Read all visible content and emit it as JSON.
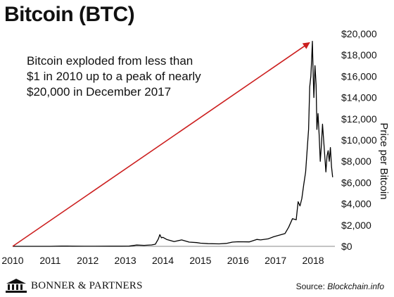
{
  "page": {
    "title": "Bitcoin (BTC)"
  },
  "footer": {
    "brand": "BONNER & PARTNERS",
    "source_prefix": "Source: ",
    "source_name": "Blockchain.info"
  },
  "chart_data": {
    "type": "line",
    "title": "Bitcoin (BTC)",
    "ylabel": "Price per Bitcoin",
    "xlabel": "",
    "x_ticks": [
      "2010",
      "2011",
      "2012",
      "2013",
      "2014",
      "2015",
      "2016",
      "2017",
      "2018"
    ],
    "y_ticks": [
      "$0",
      "$2,000",
      "$4,000",
      "$6,000",
      "$8,000",
      "$10,000",
      "$12,000",
      "$14,000",
      "$16,000",
      "$18,000",
      "$20,000"
    ],
    "xlim": [
      2010.0,
      2018.58
    ],
    "ylim": [
      0,
      20000
    ],
    "grid": false,
    "annotation": {
      "lines": [
        "Bitcoin exploded from less than",
        "$1 in 2010 up to a peak of nearly",
        "$20,000 in December 2017"
      ],
      "arrow_from": {
        "x": 2010.0,
        "y": 0
      },
      "arrow_to": {
        "x": 2017.96,
        "y": 19300
      },
      "arrow_color": "#cc1f1f"
    },
    "series": [
      {
        "color": "#000000",
        "x": [
          2010.0,
          2010.5,
          2011.0,
          2011.3,
          2011.45,
          2011.6,
          2011.9,
          2012.2,
          2012.6,
          2012.9,
          2013.1,
          2013.3,
          2013.5,
          2013.7,
          2013.8,
          2013.88,
          2013.92,
          2013.96,
          2014.0,
          2014.1,
          2014.2,
          2014.3,
          2014.5,
          2014.7,
          2014.9,
          2015.0,
          2015.2,
          2015.5,
          2015.7,
          2015.85,
          2016.0,
          2016.3,
          2016.5,
          2016.6,
          2016.8,
          2016.95,
          2017.05,
          2017.15,
          2017.25,
          2017.35,
          2017.45,
          2017.55,
          2017.6,
          2017.65,
          2017.7,
          2017.75,
          2017.8,
          2017.85,
          2017.88,
          2017.91,
          2017.94,
          2017.96,
          2017.98,
          2018.0,
          2018.02,
          2018.05,
          2018.08,
          2018.1,
          2018.13,
          2018.16,
          2018.19,
          2018.22,
          2018.25,
          2018.28,
          2018.31,
          2018.34,
          2018.37,
          2018.4,
          2018.43,
          2018.46,
          2018.49,
          2018.52
        ],
        "y": [
          0.1,
          0.1,
          1,
          20,
          25,
          10,
          4,
          6,
          12,
          13,
          20,
          120,
          90,
          130,
          200,
          700,
          1100,
          800,
          850,
          650,
          550,
          450,
          600,
          400,
          350,
          300,
          250,
          230,
          280,
          400,
          430,
          420,
          650,
          600,
          700,
          900,
          1000,
          1100,
          1200,
          1800,
          2600,
          2500,
          4200,
          3800,
          4500,
          5800,
          7000,
          9500,
          11000,
          15000,
          16000,
          17500,
          19300,
          16500,
          14000,
          17000,
          15200,
          11000,
          12500,
          10500,
          8000,
          9500,
          11500,
          10000,
          8500,
          7000,
          8500,
          9000,
          8000,
          9300,
          7500,
          6500
        ]
      }
    ]
  }
}
